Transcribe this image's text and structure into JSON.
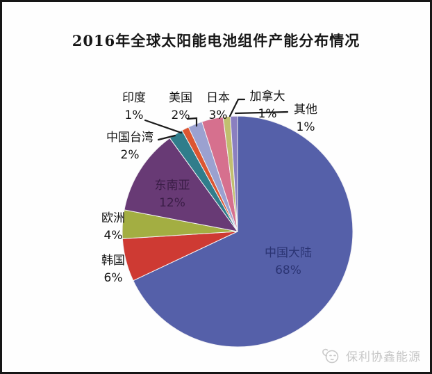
{
  "title": "2016年全球太阳能电池组件产能分布情况",
  "watermark": {
    "brand": "保利协鑫能源"
  },
  "chart_data": {
    "type": "pie",
    "title": "2016年全球太阳能电池组件产能分布情况",
    "unit": "%",
    "start_angle_deg": 0,
    "direction": "clockwise",
    "legend": "none",
    "slices": [
      {
        "label": "中国大陆",
        "value": 68,
        "pct_text": "68%",
        "color": "#5560a9",
        "label_placement": "inside"
      },
      {
        "label": "韩国",
        "value": 6,
        "pct_text": "6%",
        "color": "#ce3a33",
        "label_placement": "outside"
      },
      {
        "label": "欧洲",
        "value": 4,
        "pct_text": "4%",
        "color": "#a3ae42",
        "label_placement": "outside"
      },
      {
        "label": "东南亚",
        "value": 12,
        "pct_text": "12%",
        "color": "#683a75",
        "label_placement": "inside"
      },
      {
        "label": "中国台湾",
        "value": 2,
        "pct_text": "2%",
        "color": "#307d8b",
        "label_placement": "outside"
      },
      {
        "label": "印度",
        "value": 1,
        "pct_text": "1%",
        "color": "#dc5631",
        "label_placement": "outside"
      },
      {
        "label": "美国",
        "value": 2,
        "pct_text": "2%",
        "color": "#9ba1d0",
        "label_placement": "outside"
      },
      {
        "label": "日本",
        "value": 3,
        "pct_text": "3%",
        "color": "#d6708e",
        "label_placement": "outside"
      },
      {
        "label": "加拿大",
        "value": 1,
        "pct_text": "1%",
        "color": "#c1bf6f",
        "label_placement": "outside"
      },
      {
        "label": "其他",
        "value": 1,
        "pct_text": "1%",
        "color": "#8a7fc0",
        "label_placement": "outside"
      }
    ]
  }
}
